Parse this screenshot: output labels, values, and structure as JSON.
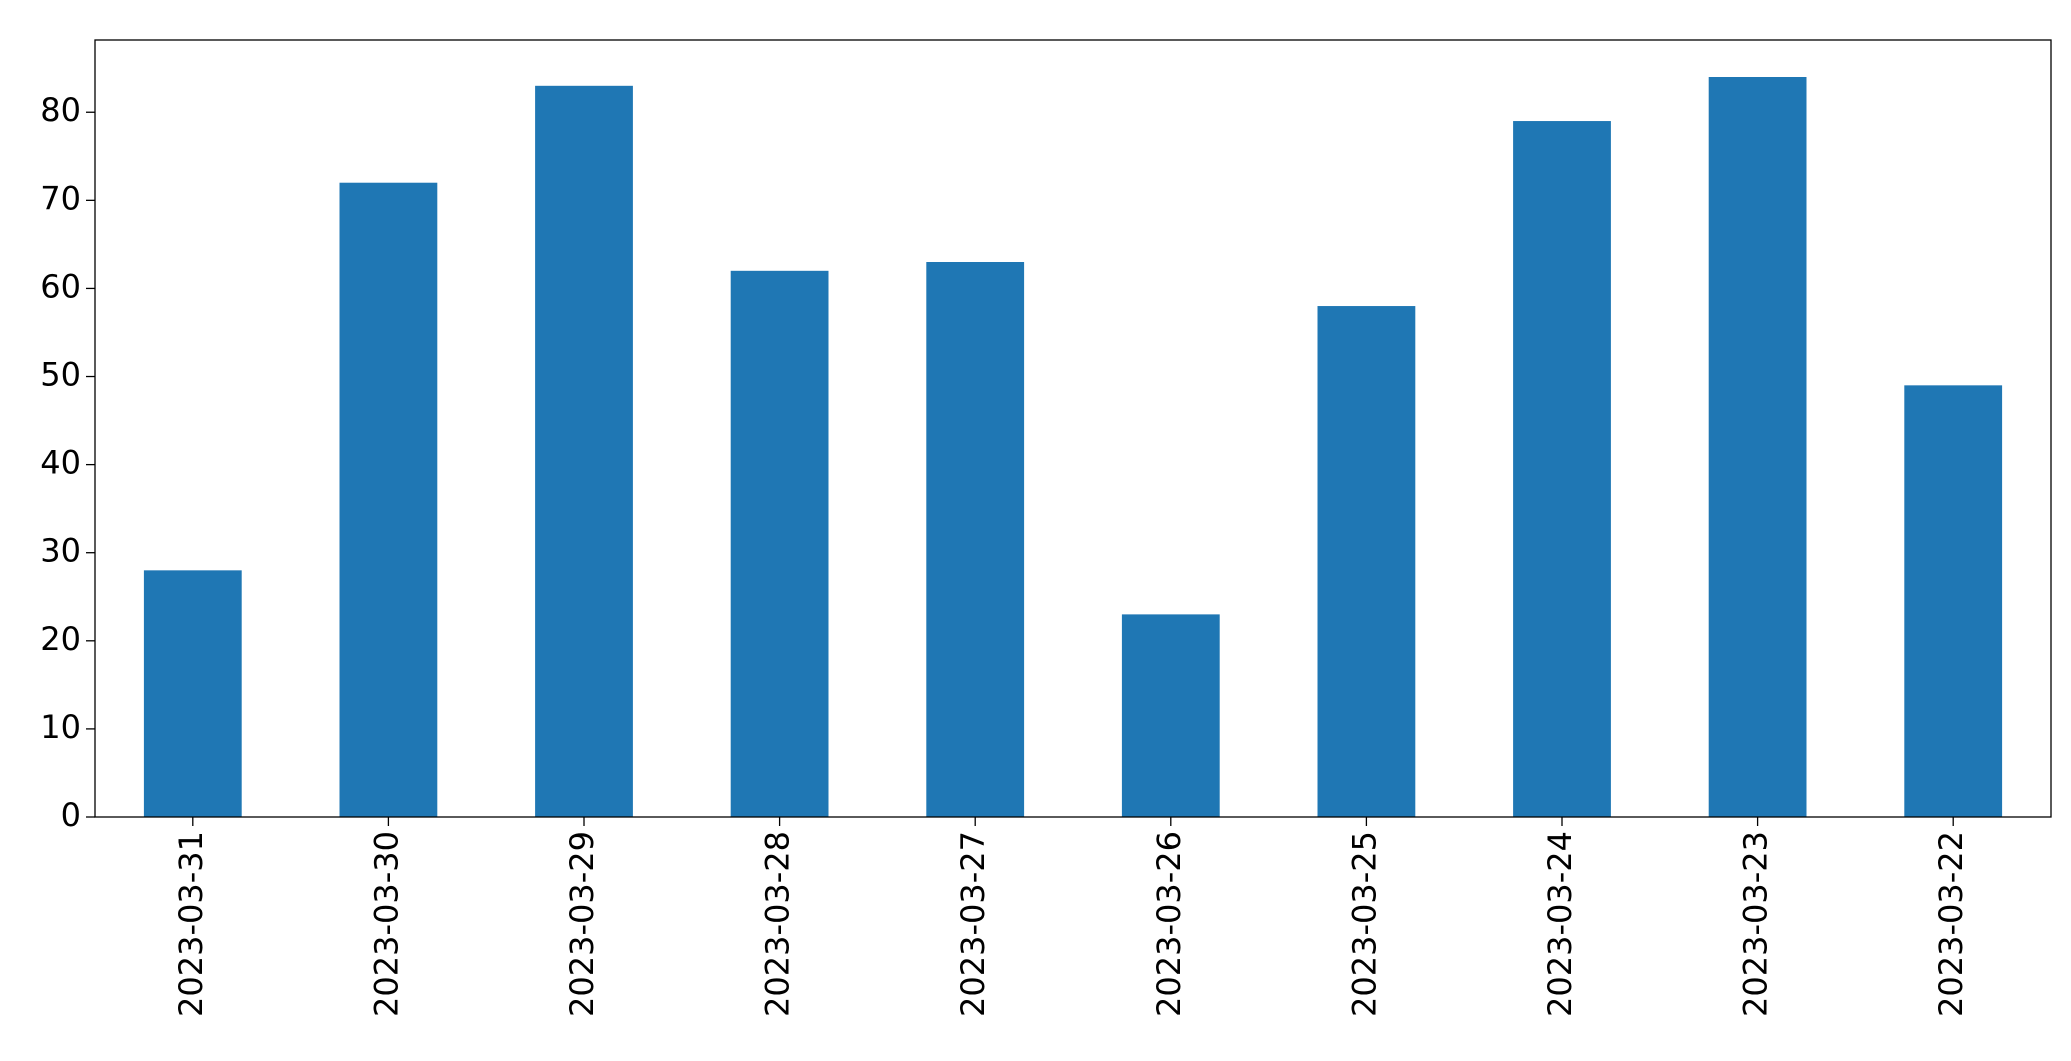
{
  "chart_data": {
    "type": "bar",
    "categories": [
      "2023-03-31",
      "2023-03-30",
      "2023-03-29",
      "2023-03-28",
      "2023-03-27",
      "2023-03-26",
      "2023-03-25",
      "2023-03-24",
      "2023-03-23",
      "2023-03-22"
    ],
    "values": [
      28,
      72,
      83,
      62,
      63,
      23,
      58,
      79,
      84,
      49
    ],
    "color": "#1f77b4",
    "ylim": [
      0,
      88.2
    ],
    "yticks": [
      0,
      10,
      20,
      30,
      40,
      50,
      60,
      70,
      80
    ],
    "grid": false
  }
}
